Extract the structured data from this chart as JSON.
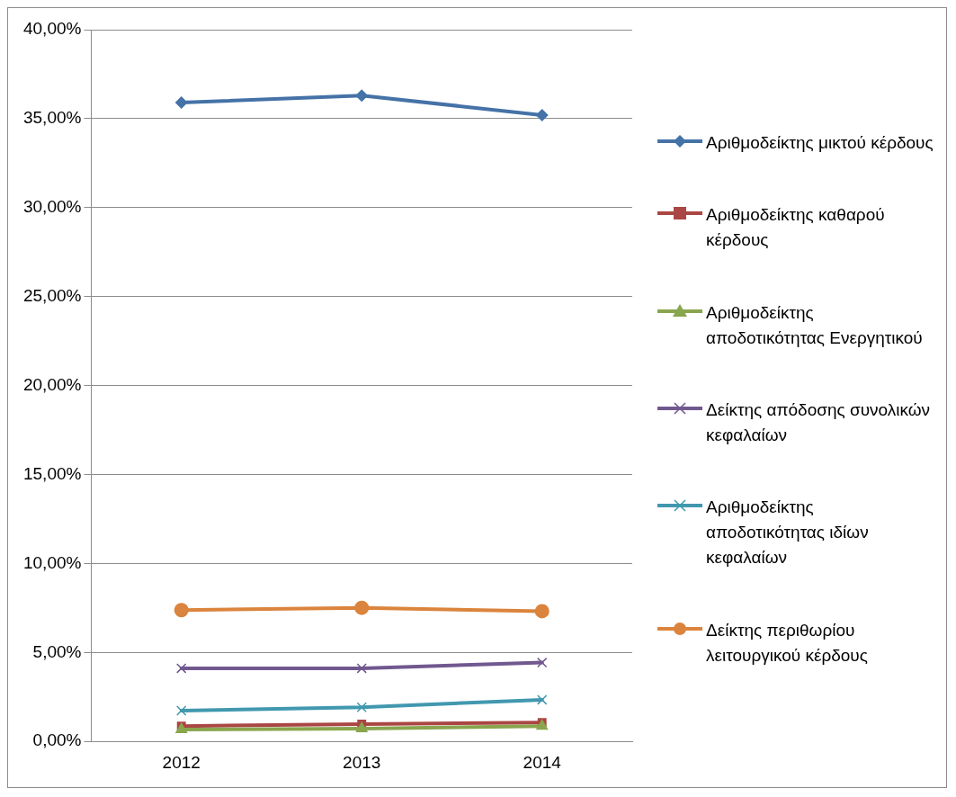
{
  "chart_data": {
    "type": "line",
    "categories": [
      "2012",
      "2013",
      "2014"
    ],
    "series": [
      {
        "name": "Αριθμοδείκτης μικτού κέρδους",
        "color": "#4572a7",
        "marker": "diamond",
        "values": [
          35.9,
          36.3,
          35.2
        ]
      },
      {
        "name": "Αριθμοδείκτης καθαρού κέρδους",
        "color": "#aa4643",
        "marker": "square",
        "values": [
          0.86,
          0.97,
          1.06
        ]
      },
      {
        "name": "Αριθμοδείκτης αποδοτικότητας Ενεργητικού",
        "color": "#89a54e",
        "marker": "triangle",
        "values": [
          0.67,
          0.72,
          0.86
        ]
      },
      {
        "name": "Δείκτης απόδοσης συνολικών κεφαλαίων",
        "color": "#71588f",
        "marker": "cross",
        "values": [
          4.11,
          4.11,
          4.43
        ]
      },
      {
        "name": "Αριθμοδείκτης αποδοτικότητας ιδίων κεφαλαίων",
        "color": "#4198af",
        "marker": "cross",
        "values": [
          1.73,
          1.92,
          2.34
        ]
      },
      {
        "name": "Δείκτης περιθωρίου λειτουργικού κέρδους",
        "color": "#db843d",
        "marker": "circle",
        "values": [
          7.38,
          7.51,
          7.32
        ]
      }
    ],
    "ylim": [
      0,
      40
    ],
    "yticks": [
      {
        "value": 0,
        "label": "0,00%"
      },
      {
        "value": 5,
        "label": "5,00%"
      },
      {
        "value": 10,
        "label": "10,00%"
      },
      {
        "value": 15,
        "label": "15,00%"
      },
      {
        "value": 20,
        "label": "20,00%"
      },
      {
        "value": 25,
        "label": "25,00%"
      },
      {
        "value": 30,
        "label": "30,00%"
      },
      {
        "value": 35,
        "label": "35,00%"
      },
      {
        "value": 40,
        "label": "40,00%"
      }
    ],
    "grid": "y",
    "legend": "right"
  }
}
